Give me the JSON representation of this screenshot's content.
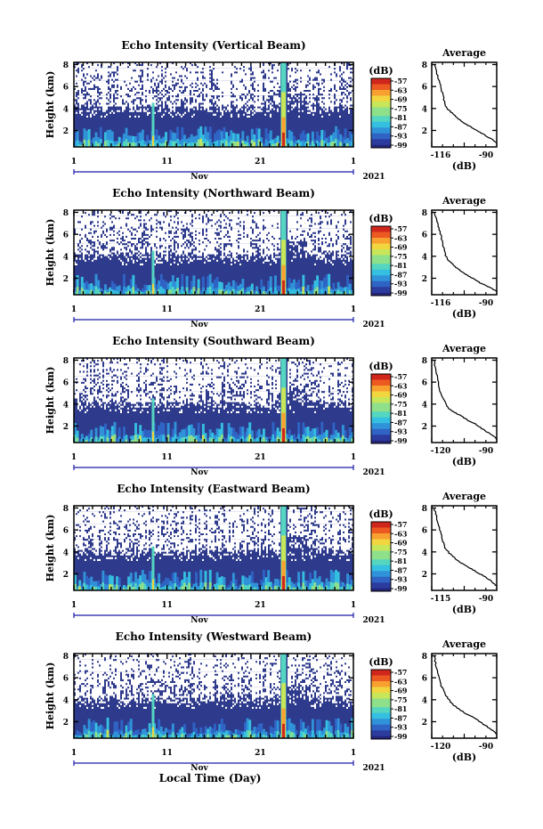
{
  "figure": {
    "xlabel": "Local Time (Day)",
    "month_label": "Nov",
    "year_label": "2021",
    "colorbar_label": "(dB)",
    "profile_title": "Average",
    "profile_xlabel": "(dB)",
    "colors": {
      "background_echo": "#2e3a8c",
      "no_data": "#ffffff",
      "axis": "#000000",
      "month_axis": "#1a1aa8"
    },
    "colormap": [
      "#24247a",
      "#2b3c9e",
      "#2f63c4",
      "#3092d8",
      "#35bfe0",
      "#55d6c0",
      "#8fe08a",
      "#c7e65a",
      "#f2d640",
      "#f8a030",
      "#ec5a22",
      "#d0271c"
    ],
    "colorbar_ticks": [
      "-57",
      "-63",
      "-69",
      "-75",
      "-81",
      "-87",
      "-93",
      "-99"
    ]
  },
  "chart_data": [
    {
      "type": "heatmap",
      "title": "Echo Intensity (Vertical Beam)",
      "xlabel": "Local Time (Day)",
      "ylabel": "Height (km)",
      "x_ticks": [
        "1",
        "11",
        "21",
        "1"
      ],
      "y_ticks": [
        2,
        4,
        6,
        8
      ],
      "ylim": [
        0.5,
        8.2
      ],
      "clim": [
        -99,
        -57
      ],
      "bright_day": 23.5,
      "secondary_day": 9.5,
      "profile": {
        "xlim": [
          -116,
          -90
        ],
        "x_ticks": [
          "-116",
          "-90"
        ],
        "ylim": [
          0.5,
          8.2
        ],
        "y_ticks": [
          2,
          4,
          6,
          8
        ],
        "points": [
          [
            -115,
            8.0
          ],
          [
            -114,
            7.3
          ],
          [
            -113,
            6.5
          ],
          [
            -112,
            5.6
          ],
          [
            -111,
            4.6
          ],
          [
            -110,
            4.0
          ],
          [
            -108,
            3.6
          ],
          [
            -106,
            3.2
          ],
          [
            -104,
            2.8
          ],
          [
            -101,
            2.4
          ],
          [
            -98,
            2.0
          ],
          [
            -95,
            1.6
          ],
          [
            -92,
            1.2
          ],
          [
            -90,
            0.9
          ]
        ]
      }
    },
    {
      "type": "heatmap",
      "title": "Echo Intensity (Northward Beam)",
      "xlabel": "Local Time (Day)",
      "ylabel": "Height (km)",
      "x_ticks": [
        "1",
        "11",
        "21",
        "1"
      ],
      "y_ticks": [
        2,
        4,
        6,
        8
      ],
      "ylim": [
        0.5,
        8.2
      ],
      "clim": [
        -99,
        -57
      ],
      "bright_day": 23.5,
      "secondary_day": 9.5,
      "profile": {
        "xlim": [
          -116,
          -90
        ],
        "x_ticks": [
          "-116",
          "-90"
        ],
        "ylim": [
          0.5,
          8.2
        ],
        "y_ticks": [
          2,
          4,
          6,
          8
        ],
        "points": [
          [
            -115,
            8.0
          ],
          [
            -114,
            7.2
          ],
          [
            -113,
            6.4
          ],
          [
            -112,
            5.6
          ],
          [
            -111,
            4.5
          ],
          [
            -110,
            3.8
          ],
          [
            -108,
            3.4
          ],
          [
            -107,
            3.1
          ],
          [
            -105,
            2.8
          ],
          [
            -102,
            2.3
          ],
          [
            -99,
            1.9
          ],
          [
            -96,
            1.5
          ],
          [
            -92,
            1.1
          ],
          [
            -90,
            0.8
          ]
        ]
      }
    },
    {
      "type": "heatmap",
      "title": "Echo Intensity (Southward Beam)",
      "xlabel": "Local Time (Day)",
      "ylabel": "Height (km)",
      "x_ticks": [
        "1",
        "11",
        "21",
        "1"
      ],
      "y_ticks": [
        2,
        4,
        6,
        8
      ],
      "ylim": [
        0.5,
        8.2
      ],
      "clim": [
        -99,
        -57
      ],
      "bright_day": 23.5,
      "secondary_day": 9.5,
      "profile": {
        "xlim": [
          -120,
          -90
        ],
        "x_ticks": [
          "-120",
          "-90"
        ],
        "ylim": [
          0.5,
          8.2
        ],
        "y_ticks": [
          2,
          4,
          6,
          8
        ],
        "points": [
          [
            -119,
            8.0
          ],
          [
            -118,
            7.0
          ],
          [
            -117,
            6.0
          ],
          [
            -116,
            5.0
          ],
          [
            -114,
            4.2
          ],
          [
            -112,
            3.6
          ],
          [
            -110,
            3.3
          ],
          [
            -107,
            3.0
          ],
          [
            -104,
            2.6
          ],
          [
            -100,
            2.2
          ],
          [
            -97,
            1.8
          ],
          [
            -94,
            1.4
          ],
          [
            -91,
            1.0
          ],
          [
            -90,
            0.8
          ]
        ]
      }
    },
    {
      "type": "heatmap",
      "title": "Echo Intensity (Eastward Beam)",
      "xlabel": "Local Time (Day)",
      "ylabel": "Height (km)",
      "x_ticks": [
        "1",
        "11",
        "21",
        "1"
      ],
      "y_ticks": [
        2,
        4,
        6,
        8
      ],
      "ylim": [
        0.5,
        8.2
      ],
      "clim": [
        -99,
        -57
      ],
      "bright_day": 23.5,
      "secondary_day": 9.5,
      "profile": {
        "xlim": [
          -116,
          -90
        ],
        "x_ticks": [
          "-115",
          "-90"
        ],
        "ylim": [
          0.5,
          8.2
        ],
        "y_ticks": [
          2,
          4,
          6,
          8
        ],
        "points": [
          [
            -115,
            8.0
          ],
          [
            -114,
            7.1
          ],
          [
            -113,
            6.2
          ],
          [
            -112,
            5.3
          ],
          [
            -111,
            4.5
          ],
          [
            -109,
            3.9
          ],
          [
            -107,
            3.5
          ],
          [
            -105,
            3.1
          ],
          [
            -102,
            2.7
          ],
          [
            -99,
            2.3
          ],
          [
            -96,
            1.9
          ],
          [
            -93,
            1.5
          ],
          [
            -91,
            1.1
          ],
          [
            -90,
            0.9
          ]
        ]
      }
    },
    {
      "type": "heatmap",
      "title": "Echo Intensity (Westward Beam)",
      "xlabel": "Local Time (Day)",
      "ylabel": "Height (km)",
      "x_ticks": [
        "1",
        "11",
        "21",
        "1"
      ],
      "y_ticks": [
        2,
        4,
        6,
        8
      ],
      "ylim": [
        0.5,
        8.2
      ],
      "clim": [
        -99,
        -57
      ],
      "bright_day": 23.5,
      "secondary_day": 9.5,
      "profile": {
        "xlim": [
          -120,
          -90
        ],
        "x_ticks": [
          "-120",
          "-90"
        ],
        "ylim": [
          0.5,
          8.2
        ],
        "y_ticks": [
          2,
          4,
          6,
          8
        ],
        "points": [
          [
            -119,
            8.0
          ],
          [
            -118,
            7.2
          ],
          [
            -117,
            6.3
          ],
          [
            -116,
            5.4
          ],
          [
            -114,
            4.6
          ],
          [
            -112,
            4.0
          ],
          [
            -110,
            3.5
          ],
          [
            -107,
            3.1
          ],
          [
            -104,
            2.7
          ],
          [
            -100,
            2.3
          ],
          [
            -97,
            1.9
          ],
          [
            -94,
            1.5
          ],
          [
            -91,
            1.1
          ],
          [
            -90,
            0.9
          ]
        ]
      }
    }
  ]
}
